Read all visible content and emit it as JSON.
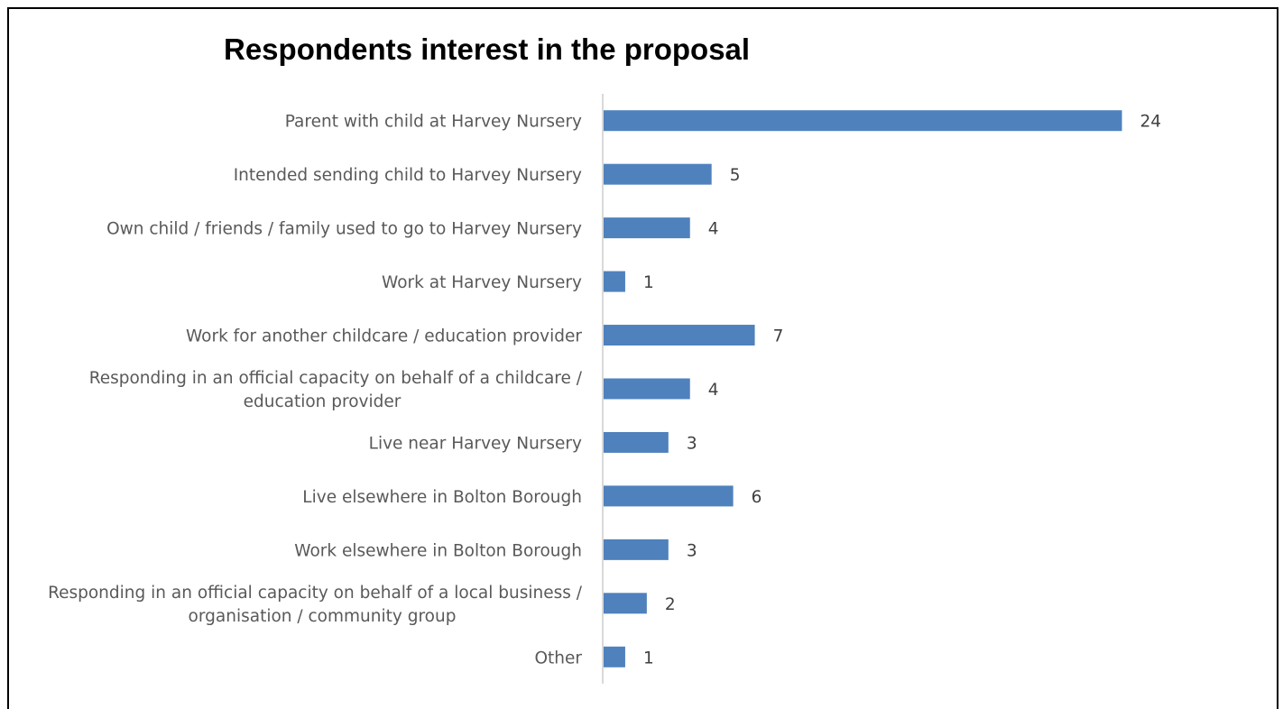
{
  "chart_data": {
    "type": "bar",
    "orientation": "horizontal",
    "title": "Respondents interest in the proposal",
    "xlabel": "",
    "ylabel": "",
    "xlim": [
      0,
      24
    ],
    "grid": false,
    "legend": "none",
    "bar_color": "#4F81BD",
    "data_labels": true,
    "categories": [
      [
        "Parent with child at Harvey Nursery"
      ],
      [
        "Intended sending child to Harvey Nursery"
      ],
      [
        "Own child / friends / family used to go to Harvey Nursery"
      ],
      [
        "Work at Harvey Nursery"
      ],
      [
        "Work for another childcare / education provider"
      ],
      [
        "Responding in an official capacity on behalf of a childcare /",
        "education provider"
      ],
      [
        "Live near Harvey Nursery"
      ],
      [
        "Live elsewhere in Bolton Borough"
      ],
      [
        "Work elsewhere in Bolton Borough"
      ],
      [
        "Responding in an official capacity on behalf of a local business /",
        "organisation / community group"
      ],
      [
        "Other"
      ]
    ],
    "values": [
      24,
      5,
      4,
      1,
      7,
      4,
      3,
      6,
      3,
      2,
      1
    ]
  }
}
